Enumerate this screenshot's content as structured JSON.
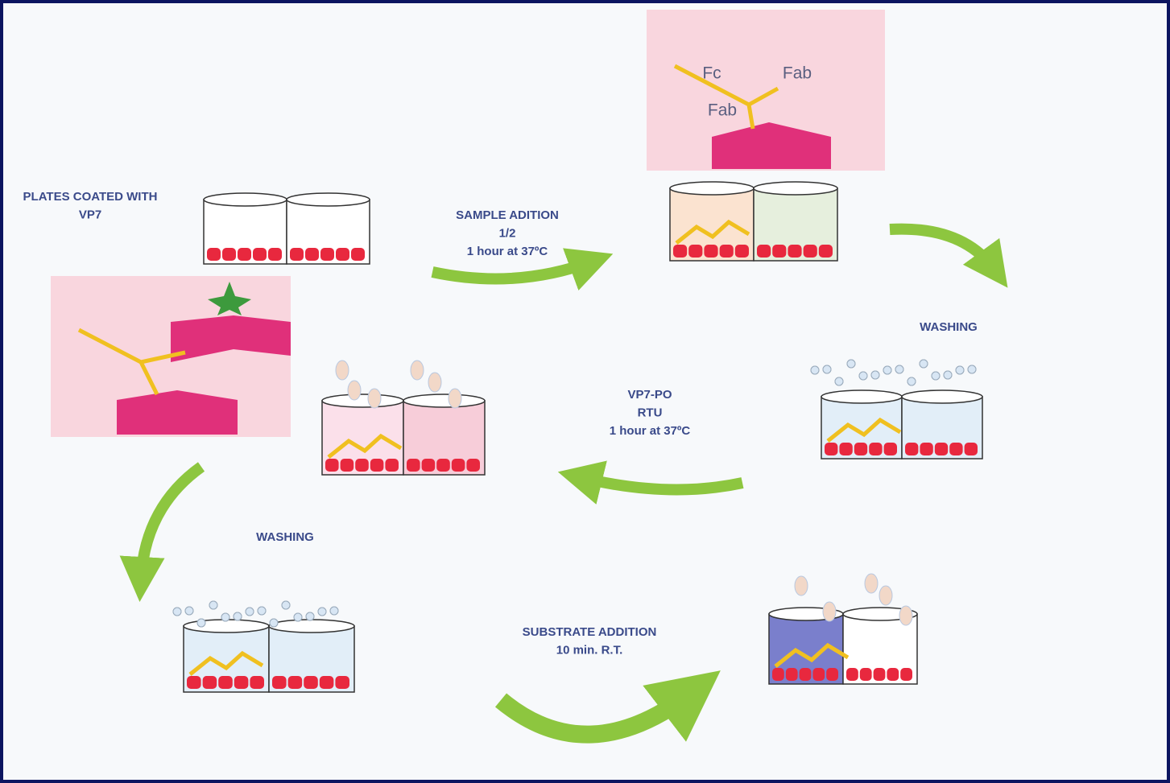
{
  "steps": [
    {
      "label": [
        "PLATES COATED WITH",
        "VP7"
      ]
    },
    {
      "label": [
        "SAMPLE ADITION",
        "1/2",
        "1 hour at 37ºC"
      ]
    },
    {
      "label": [
        "WASHING"
      ]
    },
    {
      "label": [
        "VP7-PO",
        "RTU",
        "1 hour at 37ºC"
      ]
    },
    {
      "label": [
        "WASHING"
      ]
    },
    {
      "label": [
        "SUBSTRATE ADDITION",
        "10 min. R.T."
      ]
    }
  ],
  "antibody_labels": [
    "Fc",
    "Fab",
    "Fab"
  ]
}
